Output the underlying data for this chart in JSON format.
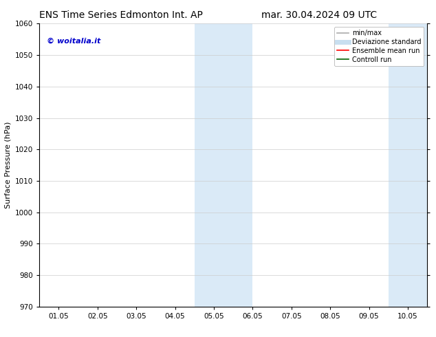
{
  "title_left": "ENS Time Series Edmonton Int. AP",
  "title_right": "mar. 30.04.2024 09 UTC",
  "ylabel": "Surface Pressure (hPa)",
  "ylim": [
    970,
    1060
  ],
  "yticks": [
    970,
    980,
    990,
    1000,
    1010,
    1020,
    1030,
    1040,
    1050,
    1060
  ],
  "xtick_labels": [
    "01.05",
    "02.05",
    "03.05",
    "04.05",
    "05.05",
    "06.05",
    "07.05",
    "08.05",
    "09.05",
    "10.05"
  ],
  "xtick_positions": [
    0,
    1,
    2,
    3,
    4,
    5,
    6,
    7,
    8,
    9
  ],
  "xlim": [
    -0.5,
    9.5
  ],
  "shaded_regions": [
    {
      "x_start": 3.5,
      "x_end": 5.0,
      "color": "#daeaf7"
    },
    {
      "x_start": 8.5,
      "x_end": 9.5,
      "color": "#daeaf7"
    }
  ],
  "watermark_text": "© woitalia.it",
  "watermark_color": "#0000cc",
  "legend_items": [
    {
      "label": "min/max",
      "color": "#aaaaaa",
      "lw": 1.2,
      "ls": "-"
    },
    {
      "label": "Deviazione standard",
      "color": "#c8dff0",
      "lw": 5,
      "ls": "-"
    },
    {
      "label": "Ensemble mean run",
      "color": "#ff0000",
      "lw": 1.2,
      "ls": "-"
    },
    {
      "label": "Controll run",
      "color": "#006400",
      "lw": 1.2,
      "ls": "-"
    }
  ],
  "background_color": "#ffffff",
  "grid_color": "#cccccc",
  "title_fontsize": 10,
  "tick_fontsize": 7.5,
  "ylabel_fontsize": 8,
  "legend_fontsize": 7,
  "watermark_fontsize": 8
}
